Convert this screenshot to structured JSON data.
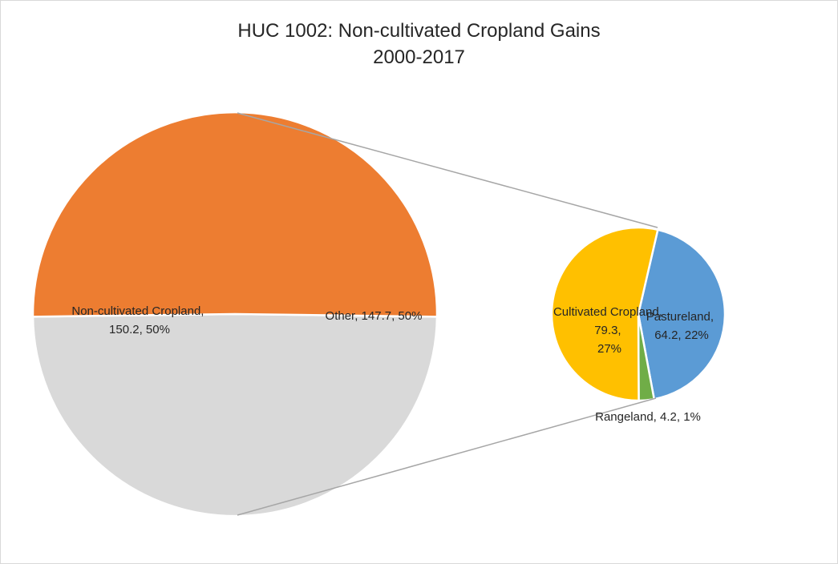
{
  "chart_data": {
    "type": "pie",
    "subtype": "pie-of-pie",
    "title": "HUC 1002: Non-cultivated Cropland Gains",
    "subtitle": "2000-2017",
    "main_pie": {
      "slices": [
        {
          "label": "Non-cultivated Cropland",
          "value": 150.2,
          "percent": "50%",
          "color": "#ED7D31"
        },
        {
          "label": "Other",
          "value": 147.7,
          "percent": "50%",
          "color": "#D9D9D9"
        }
      ]
    },
    "secondary_pie": {
      "slices": [
        {
          "label": "Pastureland",
          "value": 64.2,
          "percent": "22%",
          "color": "#5B9BD5"
        },
        {
          "label": "Rangeland",
          "value": 4.2,
          "percent": "1%",
          "color": "#70AD47"
        },
        {
          "label": "Cultivated Cropland",
          "value": 79.3,
          "percent": "27%",
          "color": "#FFC000"
        }
      ]
    },
    "data_labels": {
      "noncult": [
        "Non-cultivated Cropland,",
        "150.2, 50%"
      ],
      "other": "Other, 147.7, 50%",
      "cultivated": [
        "Cultivated Cropland,",
        "79.3,",
        "27%"
      ],
      "pasture": [
        "Pastureland,",
        "64.2, 22%"
      ],
      "range": "Rangeland, 4.2, 1%"
    },
    "connector_color": "#A6A6A6"
  }
}
